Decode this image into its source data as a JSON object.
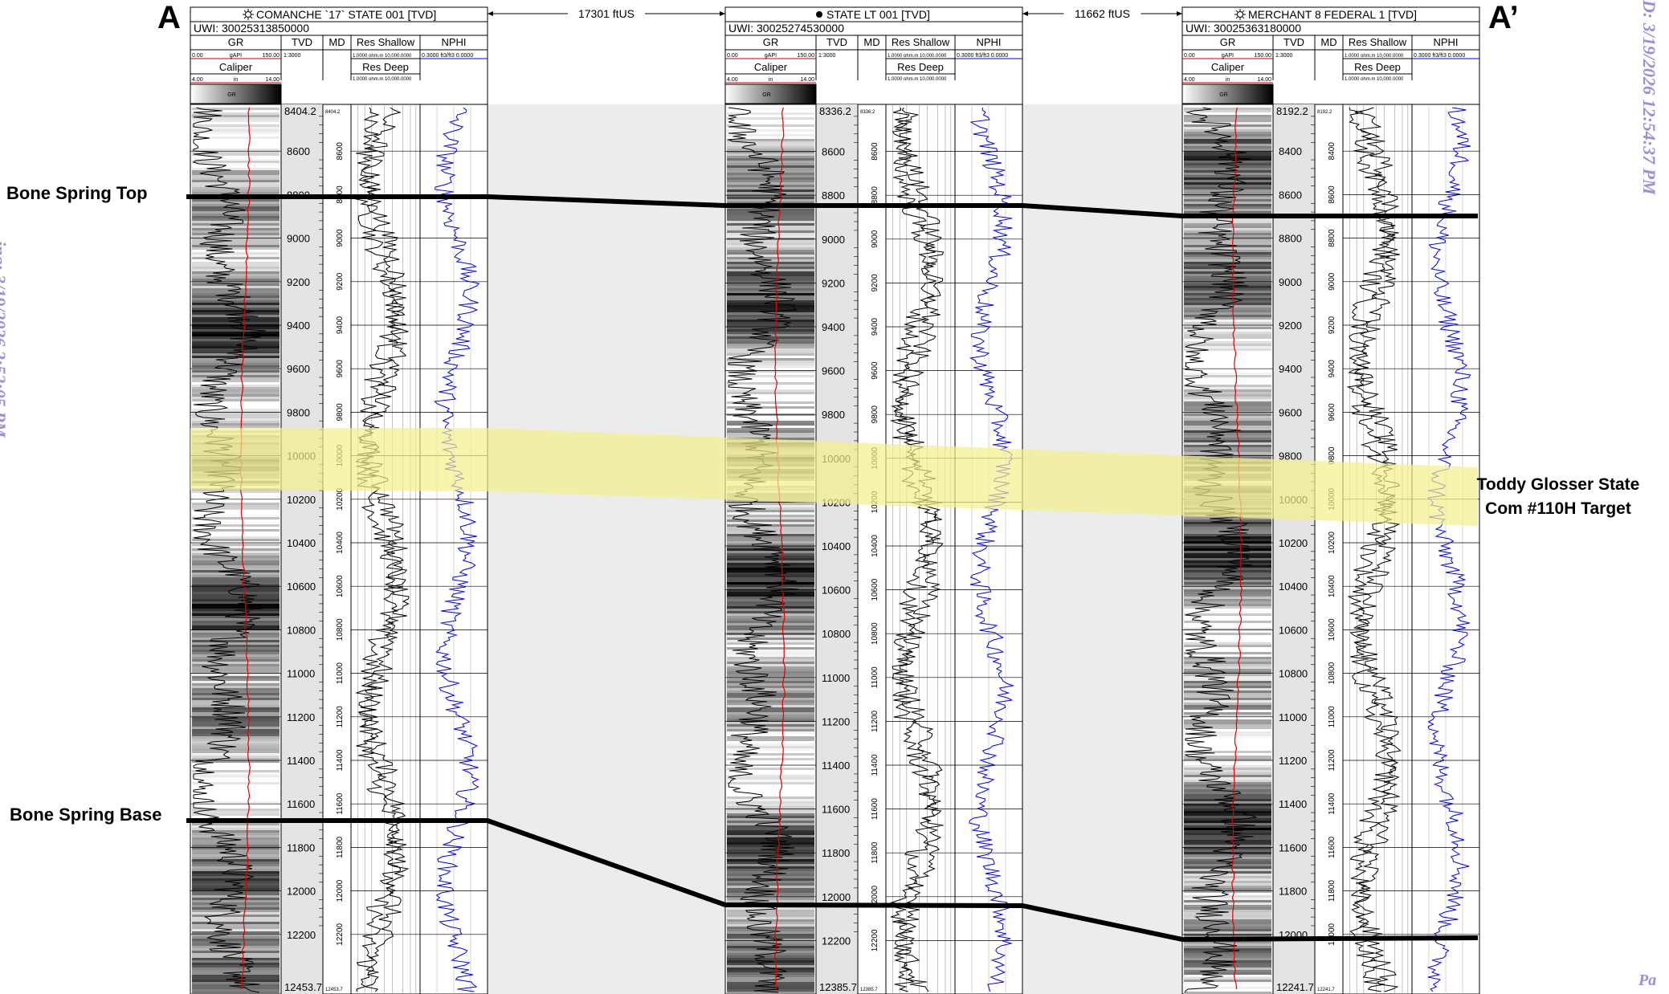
{
  "markers": {
    "left": "A",
    "right": "A’"
  },
  "watermarks": {
    "left": "ing: 3/19/2026 2:52:05 PM",
    "right": "D: 3/19/2026 12:54:37 PM",
    "right_bottom": "Pa"
  },
  "spacings": [
    "17301 ftUS",
    "11662 ftUS"
  ],
  "formations": {
    "top": "Bone Spring Top",
    "base": "Bone Spring Base",
    "target": [
      "Toddy Glosser State",
      "Com #110H Target"
    ]
  },
  "track_headers": {
    "gr": "GR",
    "tvd": "TVD",
    "md": "MD",
    "res_shallow": "Res Shallow",
    "nphi": "NPHI",
    "caliper": "Caliper",
    "res_deep": "Res Deep",
    "gr_scale": [
      "0.00",
      "gAPI",
      "150.00"
    ],
    "tvd_scale": "1:3000",
    "caliper_scale": [
      "4.00",
      "in",
      "14.00"
    ],
    "res_scale": "1.0000 ohm.m 10,000.0000",
    "nphi_scale": "0.3000 ft3/ft3 0.0000",
    "fill_label": "GR"
  },
  "colors": {
    "gr_curve": "#000000",
    "caliper_curve": "#e00000",
    "nphi_curve": "#0000ee",
    "target_band": "#f3f08a",
    "correlation_line": "#000000"
  },
  "wells": [
    {
      "name": "COMANCHE `17` STATE 001 [TVD]",
      "icon": "gas-well-icon",
      "uwi": "UWI:  30025313850000",
      "top_depth": "8404.2",
      "bottom_depth": "12453.7",
      "md_top": "8404.2",
      "md_bottom": "12453.7",
      "tvd_ticks": [
        "8600",
        "8800",
        "9000",
        "9200",
        "9400",
        "9600",
        "9800",
        "10000",
        "10200",
        "10400",
        "10600",
        "10800",
        "11000",
        "11200",
        "11400",
        "11600",
        "11800",
        "12000",
        "12200"
      ],
      "md_ticks": [
        "8600",
        "8800",
        "9000",
        "9200",
        "9400",
        "9600",
        "9800",
        "10000",
        "10200",
        "10400",
        "10600",
        "10800",
        "11000",
        "11200",
        "11400",
        "11600",
        "11800",
        "12000",
        "12200"
      ]
    },
    {
      "name": "STATE LT 001 [TVD]",
      "icon": "oil-well-icon",
      "uwi": "UWI:  30025274530000",
      "top_depth": "8336.2",
      "bottom_depth": "12385.7",
      "md_top": "8336.2",
      "md_bottom": "12385.7",
      "tvd_ticks": [
        "8600",
        "8800",
        "9000",
        "9200",
        "9400",
        "9600",
        "9800",
        "10000",
        "10200",
        "10400",
        "10600",
        "10800",
        "11000",
        "11200",
        "11400",
        "11600",
        "11800",
        "12000",
        "12200"
      ],
      "md_ticks": [
        "8600",
        "8800",
        "9000",
        "9200",
        "9400",
        "9600",
        "9800",
        "10000",
        "10200",
        "10400",
        "10600",
        "10800",
        "11000",
        "11200",
        "11400",
        "11600",
        "11800",
        "12000",
        "12200"
      ]
    },
    {
      "name": "MERCHANT 8 FEDERAL 1 [TVD]",
      "icon": "gas-well-icon",
      "uwi": "UWI:  30025363180000",
      "top_depth": "8192.2",
      "bottom_depth": "12241.7",
      "md_top": "8192.2",
      "md_bottom": "12241.7",
      "tvd_ticks": [
        "8400",
        "8600",
        "8800",
        "9000",
        "9200",
        "9400",
        "9600",
        "9800",
        "10000",
        "10200",
        "10400",
        "10600",
        "10800",
        "11000",
        "11200",
        "11400",
        "11600",
        "11800",
        "12000"
      ],
      "md_ticks": [
        "8400",
        "8600",
        "8800",
        "9000",
        "9200",
        "9400",
        "9600",
        "9800",
        "10000",
        "10200",
        "10400",
        "10600",
        "10800",
        "11000",
        "11200",
        "11400",
        "11600",
        "11800",
        "12000"
      ]
    }
  ]
}
